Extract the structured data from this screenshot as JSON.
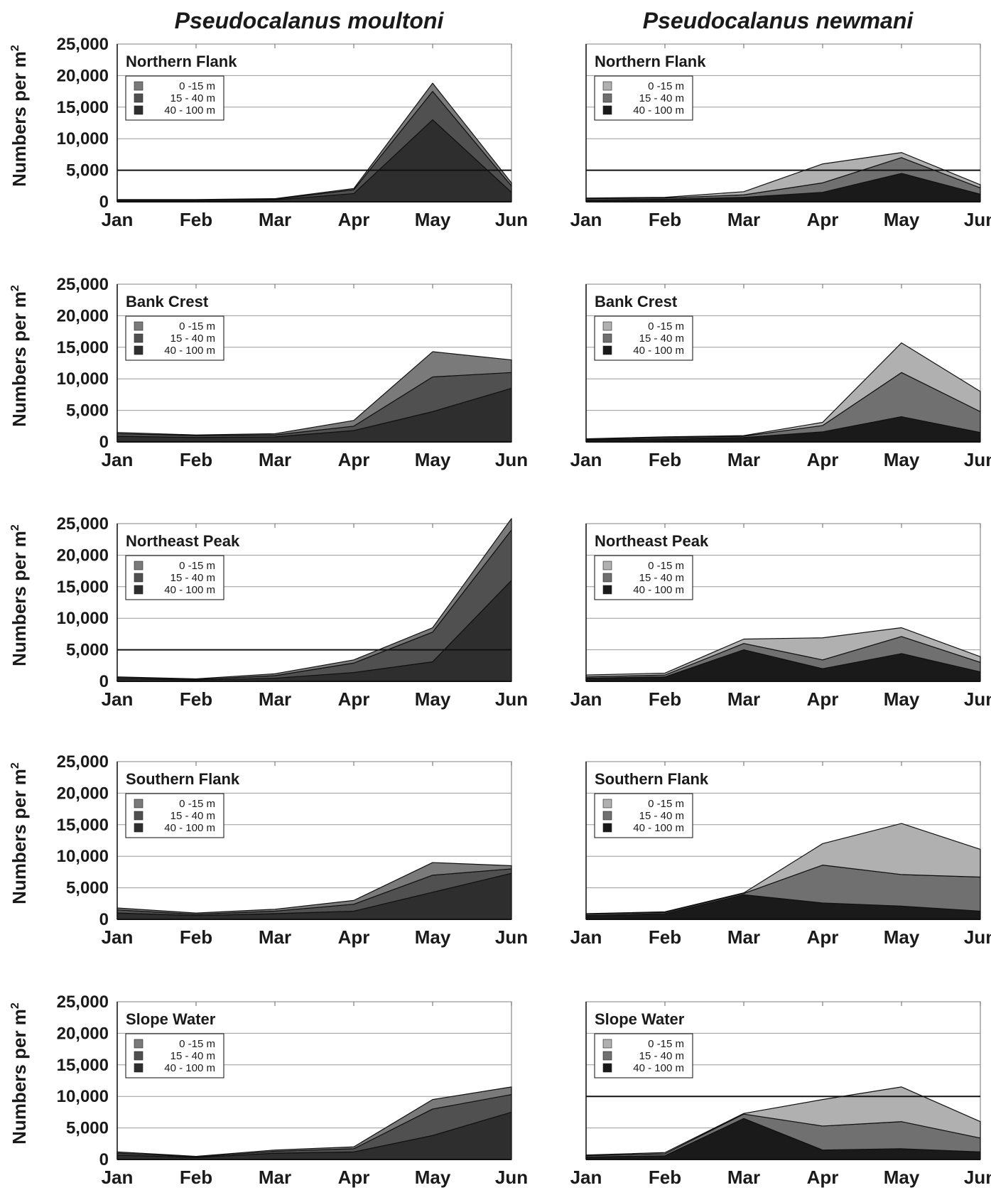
{
  "figure": {
    "column_titles": [
      "Pseudocalanus moultoni",
      "Pseudocalanus newmani"
    ],
    "ylabel": "Numbers per m",
    "ylabel_superscript": "2",
    "legend_labels": [
      "0 -15 m",
      "15 - 40 m",
      "40 - 100 m"
    ]
  },
  "chart_data": [
    {
      "type": "area",
      "column": "Pseudocalanus moultoni",
      "title": "Northern Flank",
      "categories": [
        "Jan",
        "Feb",
        "Mar",
        "Apr",
        "May",
        "Jun"
      ],
      "ylabel": "Numbers per m2",
      "ylim": [
        0,
        25000
      ],
      "yticks": [
        "0",
        "5,000",
        "10,000",
        "15,000",
        "20,000",
        "25,000"
      ],
      "reference_line": 5000,
      "colors": [
        "#7a7a7a",
        "#505050",
        "#2e2e2e"
      ],
      "series": [
        {
          "name": "40 - 100 m",
          "values": [
            200,
            200,
            300,
            1300,
            13000,
            1500
          ]
        },
        {
          "name": "15 - 40 m",
          "values": [
            100,
            100,
            100,
            600,
            4500,
            1000
          ]
        },
        {
          "name": "0 -15 m",
          "values": [
            50,
            50,
            100,
            200,
            1300,
            500
          ]
        }
      ]
    },
    {
      "type": "area",
      "column": "Pseudocalanus newmani",
      "title": "Northern Flank",
      "categories": [
        "Jan",
        "Feb",
        "Mar",
        "Apr",
        "May",
        "Jun"
      ],
      "ylabel": "Numbers per m2",
      "ylim": [
        0,
        25000
      ],
      "yticks": [
        "0",
        "5,000",
        "10,000",
        "15,000",
        "20,000",
        "25,000"
      ],
      "reference_line": 5000,
      "colors": [
        "#b0b0b0",
        "#707070",
        "#1a1a1a"
      ],
      "series": [
        {
          "name": "40 - 100 m",
          "values": [
            300,
            400,
            700,
            1500,
            4500,
            1200
          ]
        },
        {
          "name": "15 - 40 m",
          "values": [
            200,
            200,
            400,
            1500,
            2500,
            1000
          ]
        },
        {
          "name": "0 -15 m",
          "values": [
            100,
            100,
            500,
            3000,
            800,
            500
          ]
        }
      ]
    },
    {
      "type": "area",
      "column": "Pseudocalanus moultoni",
      "title": "Bank Crest",
      "categories": [
        "Jan",
        "Feb",
        "Mar",
        "Apr",
        "May",
        "Jun"
      ],
      "ylabel": "Numbers per m2",
      "ylim": [
        0,
        25000
      ],
      "yticks": [
        "0",
        "5,000",
        "10,000",
        "15,000",
        "20,000",
        "25,000"
      ],
      "colors": [
        "#7a7a7a",
        "#505050",
        "#2e2e2e"
      ],
      "series": [
        {
          "name": "40 - 100 m",
          "values": [
            900,
            700,
            800,
            1800,
            4800,
            8500
          ]
        },
        {
          "name": "15 - 40 m",
          "values": [
            400,
            300,
            300,
            700,
            5500,
            2500
          ]
        },
        {
          "name": "0 -15 m",
          "values": [
            200,
            100,
            200,
            900,
            4000,
            2000
          ]
        }
      ]
    },
    {
      "type": "area",
      "column": "Pseudocalanus newmani",
      "title": "Bank Crest",
      "categories": [
        "Jan",
        "Feb",
        "Mar",
        "Apr",
        "May",
        "Jun"
      ],
      "ylabel": "Numbers per m2",
      "ylim": [
        0,
        25000
      ],
      "yticks": [
        "0",
        "5,000",
        "10,000",
        "15,000",
        "20,000",
        "25,000"
      ],
      "colors": [
        "#b0b0b0",
        "#707070",
        "#1a1a1a"
      ],
      "series": [
        {
          "name": "40 - 100 m",
          "values": [
            300,
            500,
            700,
            1600,
            4000,
            1500
          ]
        },
        {
          "name": "15 - 40 m",
          "values": [
            100,
            200,
            200,
            1000,
            7000,
            3300
          ]
        },
        {
          "name": "0 -15 m",
          "values": [
            100,
            100,
            100,
            500,
            4700,
            3200
          ]
        }
      ]
    },
    {
      "type": "area",
      "column": "Pseudocalanus moultoni",
      "title": "Northeast Peak",
      "categories": [
        "Jan",
        "Feb",
        "Mar",
        "Apr",
        "May",
        "Jun"
      ],
      "ylabel": "Numbers per m2",
      "ylim": [
        0,
        25000
      ],
      "yticks": [
        "0",
        "5,000",
        "10,000",
        "15,000",
        "20,000",
        "25,000"
      ],
      "reference_line": 5000,
      "colors": [
        "#7a7a7a",
        "#505050",
        "#2e2e2e"
      ],
      "series": [
        {
          "name": "40 - 100 m",
          "values": [
            400,
            200,
            500,
            1400,
            3100,
            16000
          ]
        },
        {
          "name": "15 - 40 m",
          "values": [
            200,
            100,
            400,
            1500,
            4700,
            8000
          ]
        },
        {
          "name": "0 -15 m",
          "values": [
            100,
            100,
            300,
            500,
            700,
            1800
          ]
        }
      ]
    },
    {
      "type": "area",
      "column": "Pseudocalanus newmani",
      "title": "Northeast Peak",
      "categories": [
        "Jan",
        "Feb",
        "Mar",
        "Apr",
        "May",
        "Jun"
      ],
      "ylabel": "Numbers per m2",
      "ylim": [
        0,
        25000
      ],
      "yticks": [
        "0",
        "5,000",
        "10,000",
        "15,000",
        "20,000",
        "25,000"
      ],
      "colors": [
        "#b0b0b0",
        "#707070",
        "#1a1a1a"
      ],
      "series": [
        {
          "name": "40 - 100 m",
          "values": [
            500,
            700,
            5000,
            2000,
            4400,
            1500
          ]
        },
        {
          "name": "15 - 40 m",
          "values": [
            200,
            300,
            1000,
            1400,
            2700,
            1500
          ]
        },
        {
          "name": "0 -15 m",
          "values": [
            300,
            300,
            700,
            3500,
            1400,
            900
          ]
        }
      ]
    },
    {
      "type": "area",
      "column": "Pseudocalanus moultoni",
      "title": "Southern Flank",
      "categories": [
        "Jan",
        "Feb",
        "Mar",
        "Apr",
        "May",
        "Jun"
      ],
      "ylabel": "Numbers per m2",
      "ylim": [
        0,
        25000
      ],
      "yticks": [
        "0",
        "5,000",
        "10,000",
        "15,000",
        "20,000",
        "25,000"
      ],
      "colors": [
        "#7a7a7a",
        "#505050",
        "#2e2e2e"
      ],
      "series": [
        {
          "name": "40 - 100 m",
          "values": [
            1000,
            600,
            900,
            1300,
            4300,
            7300
          ]
        },
        {
          "name": "15 - 40 m",
          "values": [
            500,
            200,
            400,
            1100,
            2700,
            700
          ]
        },
        {
          "name": "0 -15 m",
          "values": [
            300,
            200,
            300,
            600,
            2000,
            500
          ]
        }
      ]
    },
    {
      "type": "area",
      "column": "Pseudocalanus newmani",
      "title": "Southern Flank",
      "categories": [
        "Jan",
        "Feb",
        "Mar",
        "Apr",
        "May",
        "Jun"
      ],
      "ylabel": "Numbers per m2",
      "ylim": [
        0,
        25000
      ],
      "yticks": [
        "0",
        "5,000",
        "10,000",
        "15,000",
        "20,000",
        "25,000"
      ],
      "colors": [
        "#b0b0b0",
        "#707070",
        "#1a1a1a"
      ],
      "series": [
        {
          "name": "40 - 100 m",
          "values": [
            600,
            900,
            3900,
            2600,
            2100,
            1300
          ]
        },
        {
          "name": "15 - 40 m",
          "values": [
            200,
            200,
            200,
            6000,
            5000,
            5400
          ]
        },
        {
          "name": "0 -15 m",
          "values": [
            100,
            100,
            100,
            3400,
            8100,
            4400
          ]
        }
      ]
    },
    {
      "type": "area",
      "column": "Pseudocalanus moultoni",
      "title": "Slope Water",
      "categories": [
        "Jan",
        "Feb",
        "Mar",
        "Apr",
        "May",
        "Jun"
      ],
      "ylabel": "Numbers per m2",
      "ylim": [
        0,
        25000
      ],
      "yticks": [
        "0",
        "5,000",
        "10,000",
        "15,000",
        "20,000",
        "25,000"
      ],
      "colors": [
        "#7a7a7a",
        "#505050",
        "#2e2e2e"
      ],
      "series": [
        {
          "name": "40 - 100 m",
          "values": [
            700,
            300,
            1000,
            1200,
            3800,
            7500
          ]
        },
        {
          "name": "15 - 40 m",
          "values": [
            300,
            100,
            300,
            500,
            4200,
            2800
          ]
        },
        {
          "name": "0 -15 m",
          "values": [
            200,
            100,
            200,
            300,
            1500,
            1200
          ]
        }
      ]
    },
    {
      "type": "area",
      "column": "Pseudocalanus newmani",
      "title": "Slope Water",
      "categories": [
        "Jan",
        "Feb",
        "Mar",
        "Apr",
        "May",
        "Jun"
      ],
      "ylabel": "Numbers per m2",
      "ylim": [
        0,
        25000
      ],
      "yticks": [
        "0",
        "5,000",
        "10,000",
        "15,000",
        "20,000",
        "25,000"
      ],
      "reference_line": 10000,
      "colors": [
        "#b0b0b0",
        "#707070",
        "#1a1a1a"
      ],
      "series": [
        {
          "name": "40 - 100 m",
          "values": [
            400,
            600,
            6500,
            1500,
            1700,
            1200
          ]
        },
        {
          "name": "15 - 40 m",
          "values": [
            200,
            300,
            700,
            3800,
            4300,
            2200
          ]
        },
        {
          "name": "0 -15 m",
          "values": [
            100,
            200,
            100,
            4200,
            5500,
            2600
          ]
        }
      ]
    }
  ]
}
